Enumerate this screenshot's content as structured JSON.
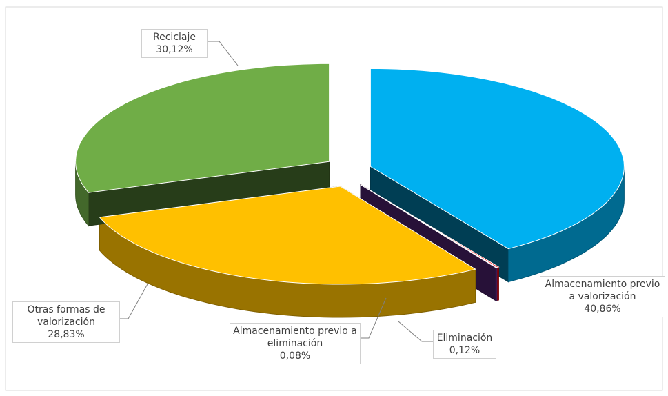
{
  "chart_data": {
    "type": "pie",
    "categories": [
      "Almacenamiento previo a valorización",
      "Eliminación",
      "Almacenamiento previo a eliminación",
      "Otras formas de valorización",
      "Reciclaje"
    ],
    "values": [
      40.86,
      0.12,
      0.08,
      28.83,
      30.12
    ],
    "value_labels": [
      "40,86%",
      "0,12%",
      "0,08%",
      "28,83%",
      "30,12%"
    ],
    "colors": [
      "#00b0f0",
      "#ff0000",
      "#7030a0",
      "#ffc000",
      "#70ad47"
    ],
    "legend": false
  }
}
